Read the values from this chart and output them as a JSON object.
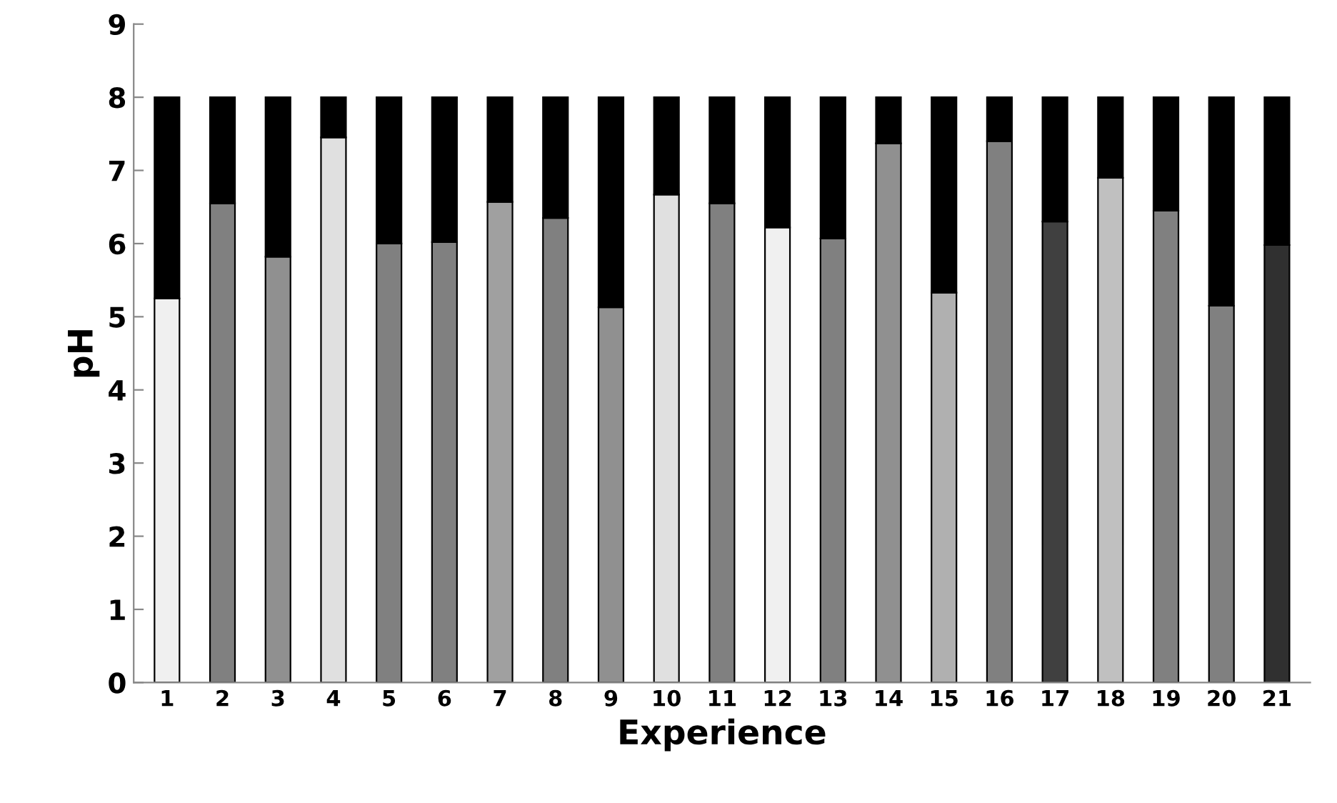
{
  "chart_data": {
    "type": "bar",
    "stacked": true,
    "xlabel": "Experience",
    "ylabel": "pH",
    "categories": [
      "1",
      "2",
      "3",
      "4",
      "5",
      "6",
      "7",
      "8",
      "9",
      "10",
      "11",
      "12",
      "13",
      "14",
      "15",
      "16",
      "17",
      "18",
      "19",
      "20",
      "21"
    ],
    "series": [
      {
        "colors": [
          "#f0f0f0",
          "#808080",
          "#909090",
          "#e0e0e0",
          "#808080",
          "#808080",
          "#a0a0a0",
          "#808080",
          "#909090",
          "#e0e0e0",
          "#808080",
          "#f0f0f0",
          "#808080",
          "#909090",
          "#b0b0b0",
          "#808080",
          "#404040",
          "#c0c0c0",
          "#808080",
          "#808080",
          "#303030"
        ],
        "values": [
          5.25,
          6.55,
          5.82,
          7.45,
          6.0,
          6.02,
          6.57,
          6.35,
          5.13,
          6.67,
          6.55,
          6.22,
          6.07,
          7.37,
          5.33,
          7.4,
          6.3,
          6.9,
          6.45,
          5.15,
          5.98
        ]
      },
      {
        "color": "#000000",
        "values": [
          2.75,
          1.45,
          2.18,
          0.55,
          2.0,
          1.98,
          1.43,
          1.65,
          2.87,
          1.33,
          1.45,
          1.78,
          1.93,
          0.63,
          2.67,
          0.6,
          1.7,
          1.1,
          1.55,
          2.85,
          2.02
        ]
      }
    ],
    "ylim": [
      0,
      9
    ],
    "yticks": [
      0,
      1,
      2,
      3,
      4,
      5,
      6,
      7,
      8,
      9
    ],
    "grid": false,
    "legend": false
  }
}
